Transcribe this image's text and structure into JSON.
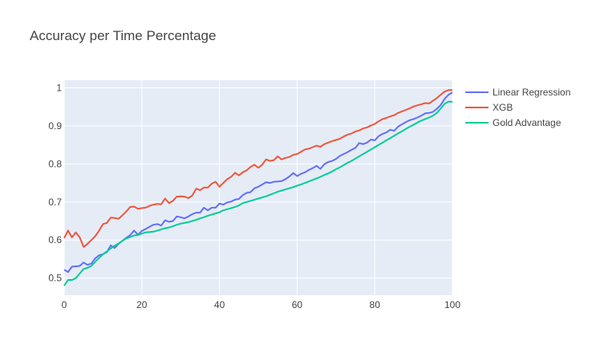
{
  "chart_data": {
    "type": "line",
    "title": "Accuracy per Time Percentage",
    "xlabel": "",
    "ylabel": "",
    "xlim": [
      0,
      100
    ],
    "ylim": [
      0.455,
      1.02
    ],
    "x_ticks": [
      0,
      20,
      40,
      60,
      80,
      100
    ],
    "y_ticks": [
      0.5,
      0.6,
      0.7,
      0.8,
      0.9,
      1
    ],
    "x_tick_labels": [
      "0",
      "20",
      "40",
      "60",
      "80",
      "100"
    ],
    "y_tick_labels": [
      "0.5",
      "0.6",
      "0.7",
      "0.8",
      "0.9",
      "1"
    ],
    "grid": true,
    "legend_position": "top-right",
    "plot_background": "#e5ecf6",
    "series": [
      {
        "name": "Linear Regression",
        "color": "#636efa",
        "x": [
          0,
          1,
          2,
          3,
          4,
          5,
          6,
          7,
          8,
          9,
          10,
          11,
          12,
          13,
          14,
          15,
          16,
          17,
          18,
          19,
          20,
          21,
          22,
          23,
          24,
          25,
          26,
          27,
          28,
          29,
          30,
          31,
          32,
          33,
          34,
          35,
          36,
          37,
          38,
          39,
          40,
          41,
          42,
          43,
          44,
          45,
          46,
          47,
          48,
          49,
          50,
          51,
          52,
          53,
          54,
          55,
          56,
          57,
          58,
          59,
          60,
          61,
          62,
          63,
          64,
          65,
          66,
          67,
          68,
          69,
          70,
          71,
          72,
          73,
          74,
          75,
          76,
          77,
          78,
          79,
          80,
          81,
          82,
          83,
          84,
          85,
          86,
          87,
          88,
          89,
          90,
          91,
          92,
          93,
          94,
          95,
          96,
          97,
          98,
          99,
          100
        ],
        "y": [
          0.522,
          0.516,
          0.53,
          0.531,
          0.532,
          0.541,
          0.535,
          0.538,
          0.552,
          0.56,
          0.563,
          0.568,
          0.586,
          0.579,
          0.59,
          0.598,
          0.606,
          0.613,
          0.625,
          0.614,
          0.624,
          0.629,
          0.635,
          0.64,
          0.642,
          0.638,
          0.652,
          0.648,
          0.65,
          0.662,
          0.66,
          0.657,
          0.662,
          0.668,
          0.672,
          0.672,
          0.685,
          0.678,
          0.685,
          0.685,
          0.696,
          0.693,
          0.699,
          0.701,
          0.706,
          0.708,
          0.718,
          0.724,
          0.726,
          0.736,
          0.74,
          0.746,
          0.752,
          0.75,
          0.753,
          0.754,
          0.755,
          0.76,
          0.767,
          0.776,
          0.768,
          0.774,
          0.778,
          0.784,
          0.789,
          0.795,
          0.787,
          0.799,
          0.805,
          0.808,
          0.813,
          0.821,
          0.826,
          0.831,
          0.837,
          0.842,
          0.855,
          0.852,
          0.856,
          0.864,
          0.862,
          0.873,
          0.879,
          0.883,
          0.89,
          0.887,
          0.898,
          0.904,
          0.91,
          0.915,
          0.918,
          0.922,
          0.927,
          0.933,
          0.934,
          0.937,
          0.945,
          0.955,
          0.971,
          0.982,
          0.988
        ]
      },
      {
        "name": "XGB",
        "color": "#ef553b",
        "x": [
          0,
          1,
          2,
          3,
          4,
          5,
          6,
          7,
          8,
          9,
          10,
          11,
          12,
          13,
          14,
          15,
          16,
          17,
          18,
          19,
          20,
          21,
          22,
          23,
          24,
          25,
          26,
          27,
          28,
          29,
          30,
          31,
          32,
          33,
          34,
          35,
          36,
          37,
          38,
          39,
          40,
          41,
          42,
          43,
          44,
          45,
          46,
          47,
          48,
          49,
          50,
          51,
          52,
          53,
          54,
          55,
          56,
          57,
          58,
          59,
          60,
          61,
          62,
          63,
          64,
          65,
          66,
          67,
          68,
          69,
          70,
          71,
          72,
          73,
          74,
          75,
          76,
          77,
          78,
          79,
          80,
          81,
          82,
          83,
          84,
          85,
          86,
          87,
          88,
          89,
          90,
          91,
          92,
          93,
          94,
          95,
          96,
          97,
          98,
          99,
          100
        ],
        "y": [
          0.605,
          0.625,
          0.607,
          0.62,
          0.607,
          0.582,
          0.59,
          0.6,
          0.61,
          0.625,
          0.642,
          0.645,
          0.659,
          0.658,
          0.656,
          0.665,
          0.675,
          0.687,
          0.688,
          0.682,
          0.684,
          0.685,
          0.69,
          0.693,
          0.695,
          0.694,
          0.709,
          0.697,
          0.703,
          0.714,
          0.715,
          0.714,
          0.71,
          0.717,
          0.735,
          0.731,
          0.738,
          0.738,
          0.748,
          0.753,
          0.74,
          0.75,
          0.76,
          0.766,
          0.777,
          0.77,
          0.778,
          0.783,
          0.792,
          0.798,
          0.79,
          0.798,
          0.812,
          0.808,
          0.81,
          0.82,
          0.812,
          0.816,
          0.818,
          0.824,
          0.826,
          0.832,
          0.838,
          0.84,
          0.844,
          0.848,
          0.845,
          0.852,
          0.856,
          0.86,
          0.863,
          0.866,
          0.872,
          0.877,
          0.88,
          0.885,
          0.888,
          0.893,
          0.896,
          0.901,
          0.905,
          0.912,
          0.918,
          0.921,
          0.925,
          0.928,
          0.934,
          0.938,
          0.942,
          0.946,
          0.951,
          0.954,
          0.957,
          0.96,
          0.959,
          0.966,
          0.973,
          0.982,
          0.99,
          0.994,
          0.994
        ]
      },
      {
        "name": "Gold Advantage",
        "color": "#00cc96",
        "x": [
          0,
          1,
          2,
          3,
          4,
          5,
          6,
          7,
          8,
          9,
          10,
          11,
          12,
          13,
          14,
          15,
          16,
          17,
          18,
          19,
          20,
          21,
          22,
          23,
          24,
          25,
          26,
          27,
          28,
          29,
          30,
          31,
          32,
          33,
          34,
          35,
          36,
          37,
          38,
          39,
          40,
          41,
          42,
          43,
          44,
          45,
          46,
          47,
          48,
          49,
          50,
          51,
          52,
          53,
          54,
          55,
          56,
          57,
          58,
          59,
          60,
          61,
          62,
          63,
          64,
          65,
          66,
          67,
          68,
          69,
          70,
          71,
          72,
          73,
          74,
          75,
          76,
          77,
          78,
          79,
          80,
          81,
          82,
          83,
          84,
          85,
          86,
          87,
          88,
          89,
          90,
          91,
          92,
          93,
          94,
          95,
          96,
          97,
          98,
          99,
          100
        ],
        "y": [
          0.48,
          0.495,
          0.495,
          0.5,
          0.512,
          0.524,
          0.527,
          0.532,
          0.543,
          0.553,
          0.563,
          0.57,
          0.578,
          0.585,
          0.591,
          0.598,
          0.604,
          0.608,
          0.612,
          0.613,
          0.617,
          0.62,
          0.621,
          0.622,
          0.625,
          0.628,
          0.631,
          0.633,
          0.636,
          0.64,
          0.643,
          0.645,
          0.647,
          0.65,
          0.653,
          0.657,
          0.66,
          0.664,
          0.667,
          0.67,
          0.673,
          0.678,
          0.681,
          0.684,
          0.687,
          0.691,
          0.697,
          0.7,
          0.703,
          0.706,
          0.709,
          0.712,
          0.715,
          0.719,
          0.723,
          0.727,
          0.73,
          0.733,
          0.736,
          0.739,
          0.743,
          0.746,
          0.75,
          0.754,
          0.758,
          0.762,
          0.766,
          0.771,
          0.775,
          0.78,
          0.786,
          0.791,
          0.797,
          0.803,
          0.808,
          0.814,
          0.82,
          0.826,
          0.832,
          0.838,
          0.844,
          0.85,
          0.856,
          0.862,
          0.868,
          0.874,
          0.88,
          0.886,
          0.892,
          0.898,
          0.903,
          0.909,
          0.914,
          0.918,
          0.922,
          0.927,
          0.934,
          0.946,
          0.958,
          0.964,
          0.963
        ]
      }
    ]
  }
}
